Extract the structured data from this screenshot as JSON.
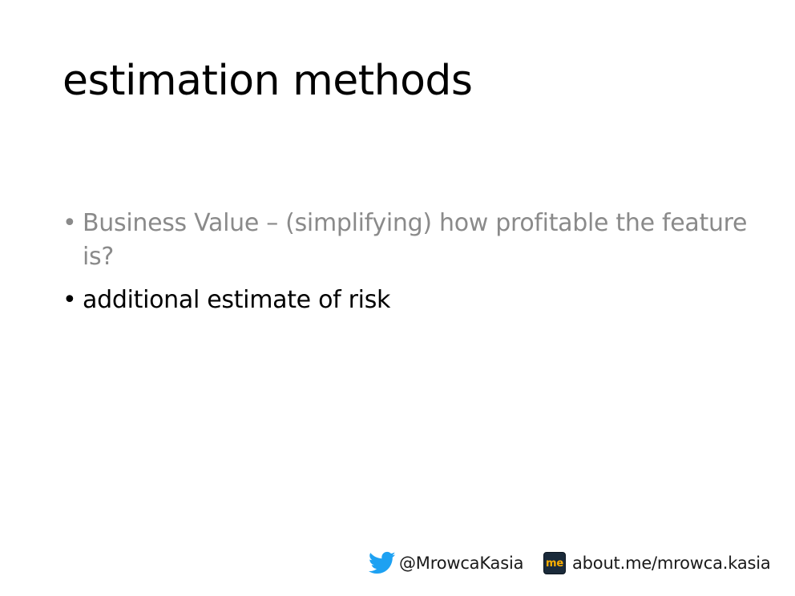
{
  "slide": {
    "title": "estimation methods",
    "bullets": [
      {
        "marker": "•",
        "text": "Business Value – (simplifying) how profitable the feature is?",
        "color": "#8a8a8a"
      },
      {
        "marker": "•",
        "text": "additional estimate of risk",
        "color": "#000000"
      }
    ]
  },
  "footer": {
    "twitter_icon": "twitter-bird-icon",
    "twitter_handle": "@MrowcaKasia",
    "twitter_color": "#1da1f2",
    "aboutme_icon": "about-me-icon",
    "aboutme_badge_text": "me",
    "aboutme_url": "about.me/mrowca.kasia"
  }
}
